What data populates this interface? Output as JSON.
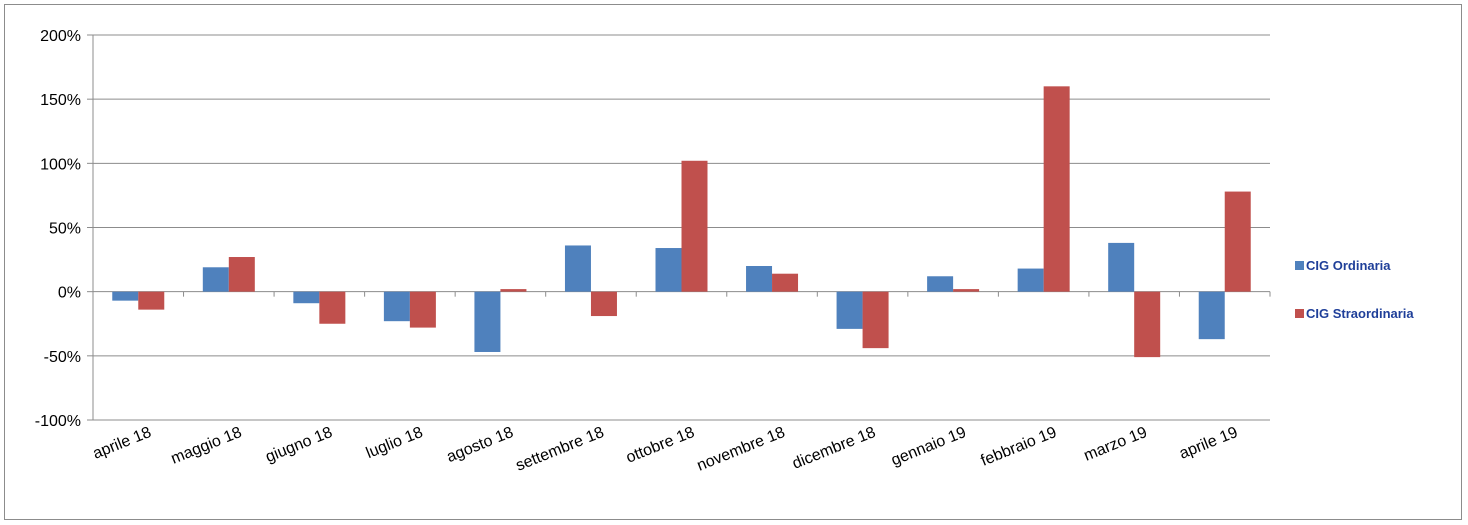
{
  "chart_data": {
    "type": "bar",
    "categories": [
      "aprile 18",
      "maggio 18",
      "giugno 18",
      "luglio 18",
      "agosto 18",
      "settembre 18",
      "ottobre 18",
      "novembre 18",
      "dicembre 18",
      "gennaio 19",
      "febbraio 19",
      "marzo 19",
      "aprile 19"
    ],
    "series": [
      {
        "name": "CIG Ordinaria",
        "color": "#4f81bd",
        "values": [
          -7,
          19,
          -9,
          -23,
          -47,
          36,
          34,
          20,
          -29,
          12,
          18,
          38,
          -37
        ]
      },
      {
        "name": "CIG Straordinaria",
        "color": "#c0504d",
        "values": [
          -14,
          27,
          -25,
          -28,
          2,
          -19,
          102,
          14,
          -44,
          2,
          160,
          -51,
          78
        ]
      }
    ],
    "ylim": [
      -100,
      200
    ],
    "yticks": [
      "-100%",
      "-50%",
      "0%",
      "50%",
      "100%",
      "150%",
      "200%"
    ],
    "ytick_values": [
      -100,
      -50,
      0,
      50,
      100,
      150,
      200
    ],
    "grid": true,
    "legend_position": "right",
    "title": "",
    "xlabel": "",
    "ylabel": ""
  }
}
